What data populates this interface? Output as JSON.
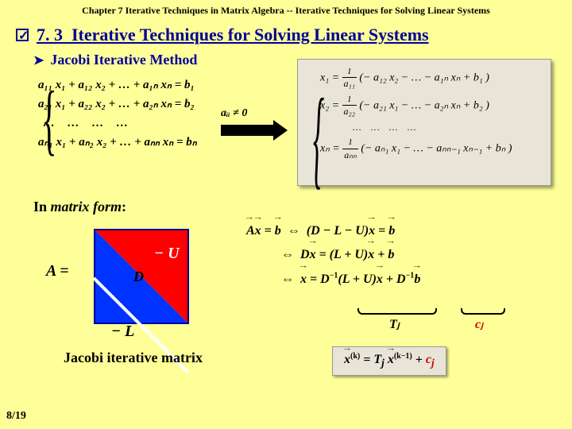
{
  "header": "Chapter 7 Iterative Techniques in Matrix Algebra -- Iterative Techniques for Solving Linear Systems",
  "section": {
    "number": "7. 3",
    "title": "Iterative Techniques for Solving Linear Systems"
  },
  "subsection": "Jacobi Iterative Method",
  "linear_system": {
    "row1": "a₁₁ x₁ + a₁₂ x₂ + … + a₁ₙ xₙ = b₁",
    "row2": "a₂₁ x₁ + a₂₂ x₂ + … + a₂ₙ xₙ = b₂",
    "dots": "…   …   …   …",
    "rown": "aₙ₁ x₁ + aₙ₂ x₂ + … + aₙₙ xₙ = bₙ"
  },
  "condition": "aᵢᵢ ≠ 0",
  "solved": {
    "row1_lhs": "x₁ =",
    "row1_frac_num": "1",
    "row1_frac_den": "a₁₁",
    "row1_rhs": "(− a₁₂ x₂ − … − a₁ₙ xₙ + b₁ )",
    "row2_lhs": "x₂ =",
    "row2_frac_num": "1",
    "row2_frac_den": "a₂₂",
    "row2_rhs": "(− a₂₁ x₁ − … − a₂ₙ xₙ + b₂ )",
    "dots": "…  …  …  …",
    "rown_lhs": "xₙ =",
    "rown_frac_num": "1",
    "rown_frac_den": "aₙₙ",
    "rown_rhs": "(− aₙ₁ x₁ − … − aₙₙ₋₁ xₙ₋₁ + bₙ )"
  },
  "matrix_form_label": "In",
  "matrix_form_emph": "matrix form",
  "a_equals": "A =",
  "matrix_parts": {
    "D": "D",
    "U": "− U",
    "L": "− L"
  },
  "derivation": {
    "row1": "A x = b  ⇔  (D − L − U) x = b",
    "row2": "⇔  D x = (L + U) x + b",
    "row3": "⇔  x = D⁻¹(L + U) x + D⁻¹ b"
  },
  "labels": {
    "Tj": "Tⱼ",
    "cj": "cⱼ"
  },
  "jacobi_matrix": "Jacobi iterative matrix",
  "iter_formula": "x⁽ᵏ⁾ = Tⱼ x⁽ᵏ⁻¹⁾ + cⱼ",
  "page": "8/19",
  "colors": {
    "background": "#ffff99",
    "heading": "#000099",
    "panel": "#e8e4d8",
    "upper_tri": "#ff0000",
    "lower_tri": "#0033ff",
    "cj": "#cc0000"
  }
}
